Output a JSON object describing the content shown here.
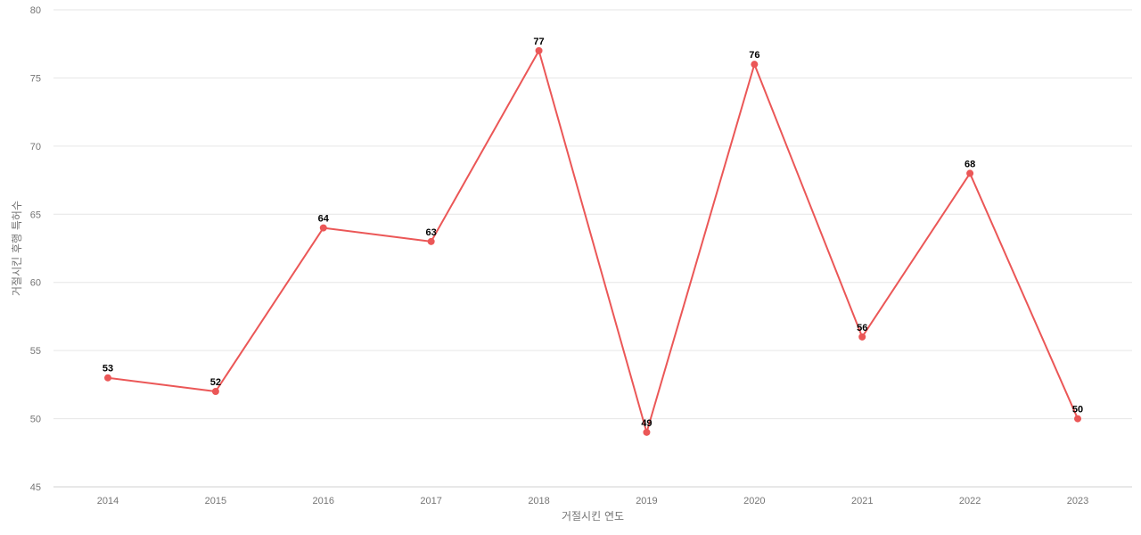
{
  "chart_data": {
    "type": "line",
    "title": "",
    "xlabel": "거절시킨 연도",
    "ylabel": "거절시킨 후행 특허수",
    "categories": [
      "2014",
      "2015",
      "2016",
      "2017",
      "2018",
      "2019",
      "2020",
      "2021",
      "2022",
      "2023"
    ],
    "series": [
      {
        "values": [
          53,
          52,
          64,
          63,
          77,
          49,
          76,
          56,
          68,
          50
        ],
        "color": "#eb5757"
      }
    ],
    "ylim": [
      45,
      80
    ],
    "yticks": [
      45,
      50,
      55,
      60,
      65,
      70,
      75,
      80
    ],
    "grid": true,
    "data_labels": true,
    "legend": "none"
  }
}
